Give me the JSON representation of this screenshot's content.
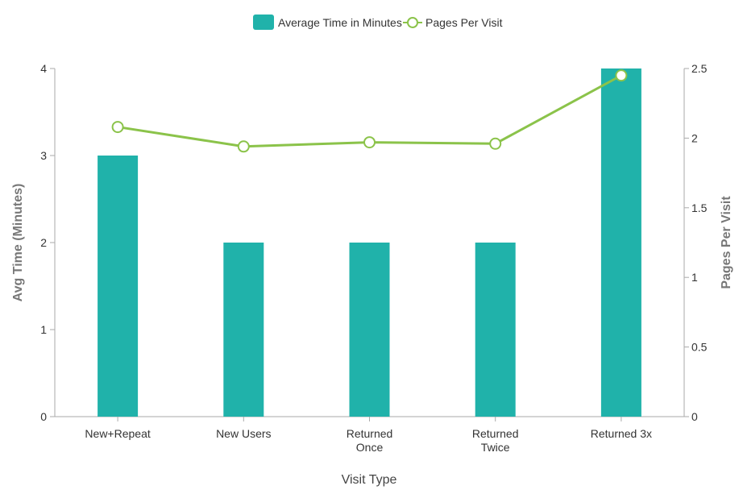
{
  "chart_data": {
    "type": "bar",
    "categories": [
      [
        "New+Repeat"
      ],
      [
        "New Users"
      ],
      [
        "Returned",
        "Once"
      ],
      [
        "Returned",
        "Twice"
      ],
      [
        "Returned 3x"
      ]
    ],
    "series": [
      {
        "name": "Average Time in Minutes",
        "type": "bar",
        "axis": "left",
        "color": "#20b2aa",
        "values": [
          3,
          2,
          2,
          2,
          4
        ]
      },
      {
        "name": "Pages Per Visit",
        "type": "line",
        "axis": "right",
        "color": "#8bc34a",
        "values": [
          2.08,
          1.94,
          1.97,
          1.96,
          2.45
        ]
      }
    ],
    "xlabel": "Visit Type",
    "ylabel": "Avg Time (Minutes)",
    "y2label": "Pages Per Visit",
    "ylim": [
      0,
      4
    ],
    "y2lim": [
      0,
      2.5
    ],
    "yticks": [
      "0",
      "1",
      "2",
      "3",
      "4"
    ],
    "y2ticks": [
      "0",
      "0.5",
      "1",
      "1.5",
      "2",
      "2.5"
    ],
    "legend_position": "top-center",
    "grid": false
  }
}
